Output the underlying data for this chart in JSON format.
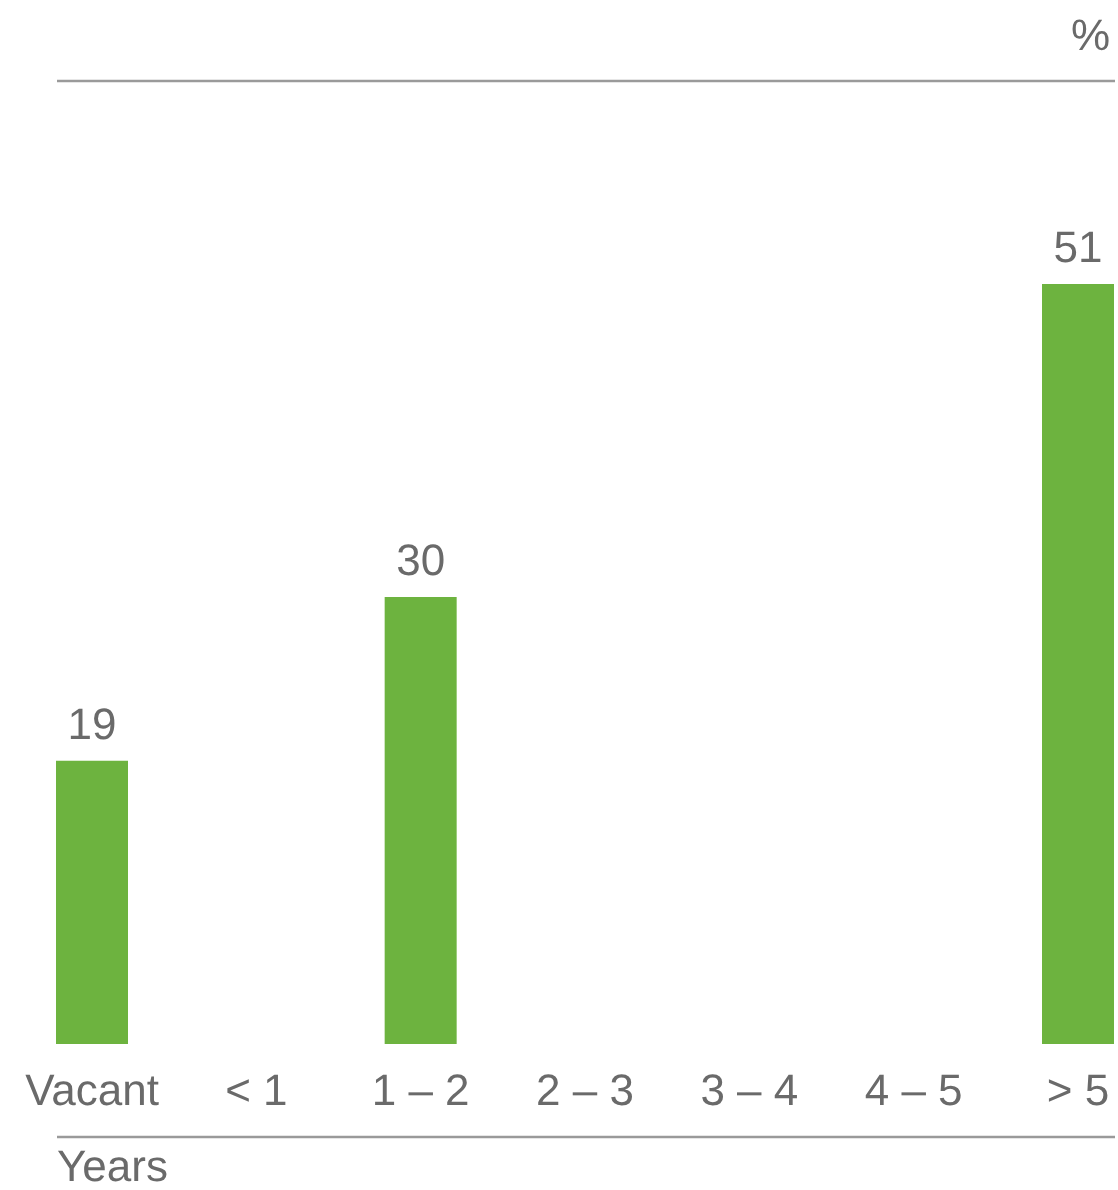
{
  "chart_data": {
    "type": "bar",
    "xlabel": "Years",
    "annotations": [
      "%"
    ],
    "categories": [
      "Vacant",
      "< 1",
      "1 – 2",
      "2 – 3",
      "3 – 4",
      "4 – 5",
      "> 5"
    ],
    "values": [
      19,
      null,
      30,
      null,
      null,
      null,
      51
    ],
    "color": "#6db33f",
    "data_labels": true,
    "grid": false
  }
}
